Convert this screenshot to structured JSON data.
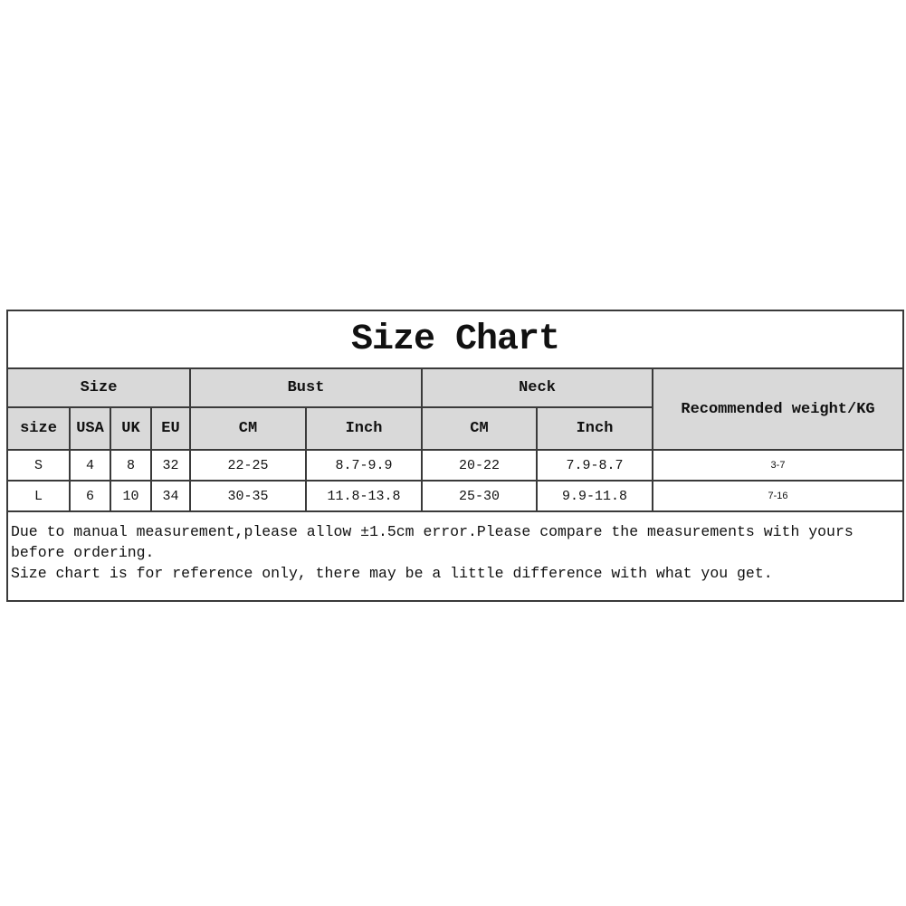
{
  "title": "Size Chart",
  "groups": {
    "size": "Size",
    "bust": "Bust",
    "neck": "Neck",
    "weight": "Recommended weight/KG"
  },
  "subheaders": [
    "size",
    "USA",
    "UK",
    "EU",
    "CM",
    "Inch",
    "CM",
    "Inch"
  ],
  "rows": [
    [
      "S",
      "4",
      "8",
      "32",
      "22-25",
      "8.7-9.9",
      "20-22",
      "7.9-8.7",
      "3-7"
    ],
    [
      "L",
      "6",
      "10",
      "34",
      "30-35",
      "11.8-13.8",
      "25-30",
      "9.9-11.8",
      "7-16"
    ]
  ],
  "notes": [
    "Due to manual measurement,please allow ±1.5cm error.Please compare the measurements with yours",
    "before ordering.",
    "Size chart is for reference only, there may be a little difference with what you get."
  ],
  "colors": {
    "header_bg": "#d9d9d9",
    "border": "#3a3a3a"
  }
}
